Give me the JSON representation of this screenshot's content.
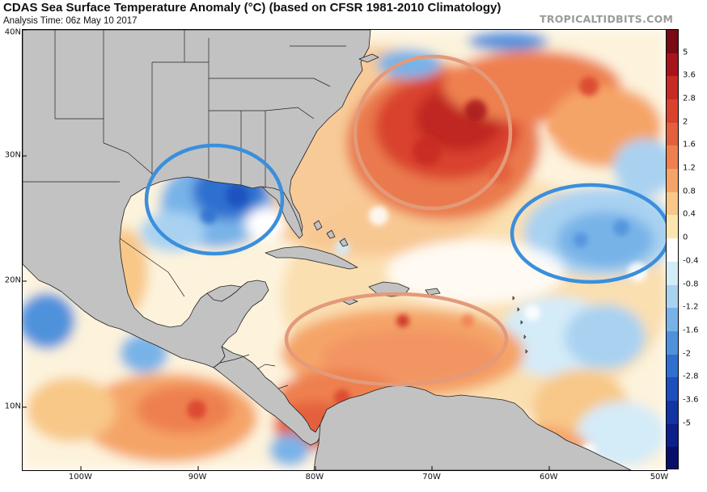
{
  "header": {
    "title": "CDAS Sea Surface Temperature Anomaly (°C) (based on CFSR 1981-2010 Climatology)",
    "analysis_time": "Analysis Time: 06z May 10 2017",
    "brand": "TROPICALTIDBITS.COM"
  },
  "map": {
    "lon_range": [
      -105,
      -50
    ],
    "lat_range": [
      5,
      40
    ],
    "lat_labels": [
      "40N",
      "30N",
      "20N",
      "10N"
    ],
    "lat_values": [
      40,
      30,
      20,
      10
    ],
    "lon_labels": [
      "100W",
      "90W",
      "80W",
      "70W",
      "60W",
      "50W"
    ],
    "lon_values": [
      -100,
      -90,
      -80,
      -70,
      -60,
      -50
    ],
    "land_color": "#c2c2c2",
    "highlights": [
      {
        "name": "gulf-of-mexico-cool-anomaly",
        "type": "cool"
      },
      {
        "name": "western-atlantic-warm-anomaly",
        "type": "warm"
      },
      {
        "name": "central-atlantic-cool-anomaly",
        "type": "cool"
      },
      {
        "name": "caribbean-warm-anomaly",
        "type": "warm"
      }
    ],
    "highlight_colors": {
      "cool": "#3a8fdc",
      "warm": "#e39a7a"
    }
  },
  "colorbar": {
    "labels": [
      "5",
      "3.6",
      "2.8",
      "2",
      "1.6",
      "1.2",
      "0.8",
      "0.4",
      "0",
      "-0.4",
      "-0.8",
      "-1.2",
      "-1.6",
      "-2",
      "-2.8",
      "-3.6",
      "-5"
    ],
    "colors": [
      "#7a0a14",
      "#a8141c",
      "#c82a24",
      "#d9432e",
      "#e4603c",
      "#ee8050",
      "#f5a467",
      "#f8c888",
      "#fbe6b0",
      "#ffffff",
      "#d4ebf8",
      "#a9d2f1",
      "#78b3e8",
      "#4f92dc",
      "#2f6fcf",
      "#1d4fbd",
      "#1434a3",
      "#0c1f8a",
      "#06106a"
    ]
  }
}
